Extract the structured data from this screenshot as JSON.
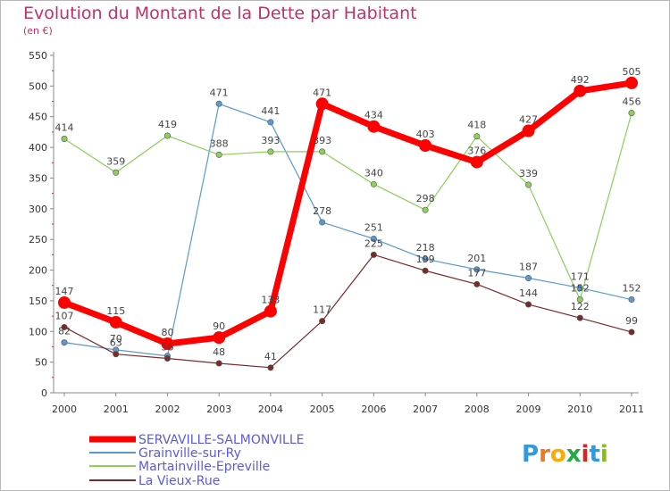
{
  "chart_data": {
    "type": "line",
    "title": "Evolution du Montant de la Dette par Habitant",
    "unit_label": "(en €)",
    "x": [
      "2000",
      "2001",
      "2002",
      "2003",
      "2004",
      "2005",
      "2006",
      "2007",
      "2008",
      "2009",
      "2010",
      "2011"
    ],
    "ylim": [
      0,
      550
    ],
    "yticks": [
      0,
      50,
      100,
      150,
      200,
      250,
      300,
      350,
      400,
      450,
      500,
      550
    ],
    "grid": false,
    "legend": "bottom-left",
    "series": [
      {
        "name": "SERVAVILLE-SALMONVILLE",
        "color": "#ff0000",
        "values": [
          147,
          115,
          80,
          90,
          133,
          471,
          434,
          403,
          376,
          427,
          492,
          505
        ]
      },
      {
        "name": "Grainville-sur-Ry",
        "color": "#5a9ad0",
        "values": [
          82,
          70,
          60,
          471,
          441,
          278,
          251,
          218,
          201,
          187,
          171,
          152
        ]
      },
      {
        "name": "Martainville-Epreville",
        "color": "#8ccf5a",
        "values": [
          414,
          359,
          419,
          388,
          393,
          393,
          340,
          298,
          418,
          339,
          152,
          456
        ]
      },
      {
        "name": "La Vieux-Rue",
        "color": "#7a2a2a",
        "values": [
          107,
          63,
          56,
          48,
          41,
          117,
          225,
          199,
          177,
          144,
          122,
          99
        ]
      }
    ],
    "labels": {
      "SERVAVILLE-SALMONVILLE": [
        "147",
        "115",
        "80",
        "90",
        "133",
        "471",
        "434",
        "403",
        "376",
        "427",
        "492",
        "505"
      ],
      "Grainville-sur-Ry": [
        "82",
        "70",
        "",
        "471",
        "441",
        "278",
        "251",
        "218",
        "201",
        "187",
        "171",
        "152"
      ],
      "Martainville-Epreville": [
        "414",
        "359",
        "419",
        "388",
        "393",
        "393",
        "340",
        "298",
        "418",
        "339",
        "152",
        "456"
      ],
      "La Vieux-Rue": [
        "107",
        "63",
        "56",
        "48",
        "41",
        "117",
        "225",
        "199",
        "177",
        "144",
        "122",
        "99"
      ]
    }
  },
  "logo": {
    "text": "Proxiti",
    "letters": [
      "P",
      "r",
      "o",
      "x",
      "i",
      "t",
      "i"
    ],
    "colors": [
      "#3399dd",
      "#ee7722",
      "#ffaa00",
      "#22aa44",
      "#dd2222",
      "#3399dd",
      "#88bb22"
    ]
  }
}
